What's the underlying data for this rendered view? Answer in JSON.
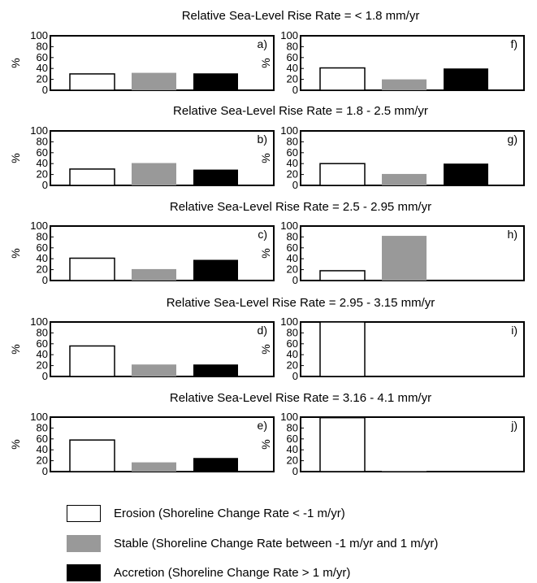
{
  "colors": {
    "erosion": "#ffffff",
    "stable": "#999999",
    "accretion": "#000000",
    "outline": "#000000"
  },
  "chart_data": {
    "type": "bar",
    "ylabel": "%",
    "ylim": [
      0,
      100
    ],
    "yticks": [
      0,
      20,
      40,
      60,
      80,
      100
    ],
    "categories": [
      "Erosion",
      "Stable",
      "Accretion"
    ],
    "rows": [
      {
        "title": "Relative Sea-Level Rise Rate = < 1.8 mm/yr",
        "panels": [
          {
            "label": "a)",
            "values": [
              30,
              32,
              31
            ]
          },
          {
            "label": "f)",
            "values": [
              41,
              20,
              40
            ]
          }
        ]
      },
      {
        "title": "Relative Sea-Level Rise Rate  = 1.8 - 2.5 mm/yr",
        "panels": [
          {
            "label": "b)",
            "values": [
              30,
              41,
              29
            ]
          },
          {
            "label": "g)",
            "values": [
              40,
              21,
              40
            ]
          }
        ]
      },
      {
        "title": "Relative Sea-Level Rise Rate  = 2.5 - 2.95 mm/yr",
        "panels": [
          {
            "label": "c)",
            "values": [
              41,
              21,
              38
            ]
          },
          {
            "label": "h)",
            "values": [
              18,
              82,
              0
            ]
          }
        ]
      },
      {
        "title": "Relative Sea-Level Rise Rate  = 2.95 - 3.15 mm/yr",
        "panels": [
          {
            "label": "d)",
            "values": [
              56,
              22,
              22
            ]
          },
          {
            "label": "i)",
            "values": [
              100,
              0,
              0
            ]
          }
        ]
      },
      {
        "title": "Relative Sea-Level Rise Rate  = 3.16 - 4.1 mm/yr",
        "panels": [
          {
            "label": "e)",
            "values": [
              58,
              17,
              25
            ]
          },
          {
            "label": "j)",
            "values": [
              99,
              1,
              0
            ]
          }
        ]
      }
    ]
  },
  "legend": [
    {
      "key": "erosion",
      "label": "Erosion (Shoreline Change Rate < -1 m/yr)"
    },
    {
      "key": "stable",
      "label": "Stable (Shoreline Change Rate between -1 m/yr and 1 m/yr)"
    },
    {
      "key": "accretion",
      "label": "Accretion (Shoreline Change Rate > 1 m/yr)"
    }
  ]
}
